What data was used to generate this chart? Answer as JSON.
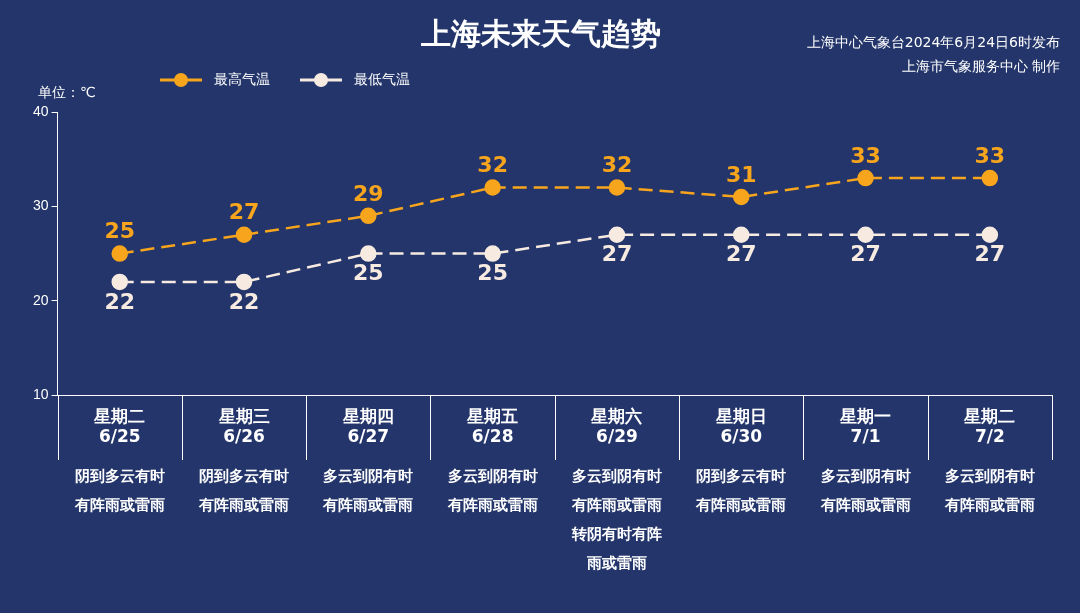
{
  "chart_data": {
    "type": "line",
    "title": "上海未来天气趋势",
    "ylabel": "单位：℃",
    "categories": [
      "星期二 6/25",
      "星期三 6/26",
      "星期四 6/27",
      "星期五 6/28",
      "星期六 6/29",
      "星期日 6/30",
      "星期一 7/1",
      "星期二 7/2"
    ],
    "series": [
      {
        "name": "最高气温",
        "color": "#f7a51c",
        "values": [
          25,
          27,
          29,
          32,
          32,
          31,
          33,
          33
        ]
      },
      {
        "name": "最低气温",
        "color": "#f7ebe1",
        "values": [
          22,
          22,
          25,
          25,
          27,
          27,
          27,
          27
        ]
      }
    ],
    "ylim": [
      10,
      40
    ],
    "yticks": [
      10,
      20,
      30,
      40
    ],
    "grid": false,
    "legend": "top left",
    "marker": "circle",
    "line_style": "dashed",
    "data_labels": true,
    "annotations": [
      "上海中心气象台2024年6月24日6时发布",
      "上海市气象服务中心 制作",
      "阴到多云有时有阵雨或雷雨",
      "阴到多云有时有阵雨或雷雨",
      "多云到阴有时有阵雨或雷雨",
      "多云到阴有时有阵雨或雷雨",
      "多云到阴有时有阵雨或雷雨转阴有时有阵雨或雷雨",
      "阴到多云有时有阵雨或雷雨",
      "多云到阴有时有阵雨或雷雨",
      "多云到阴有时有阵雨或雷雨"
    ]
  }
}
